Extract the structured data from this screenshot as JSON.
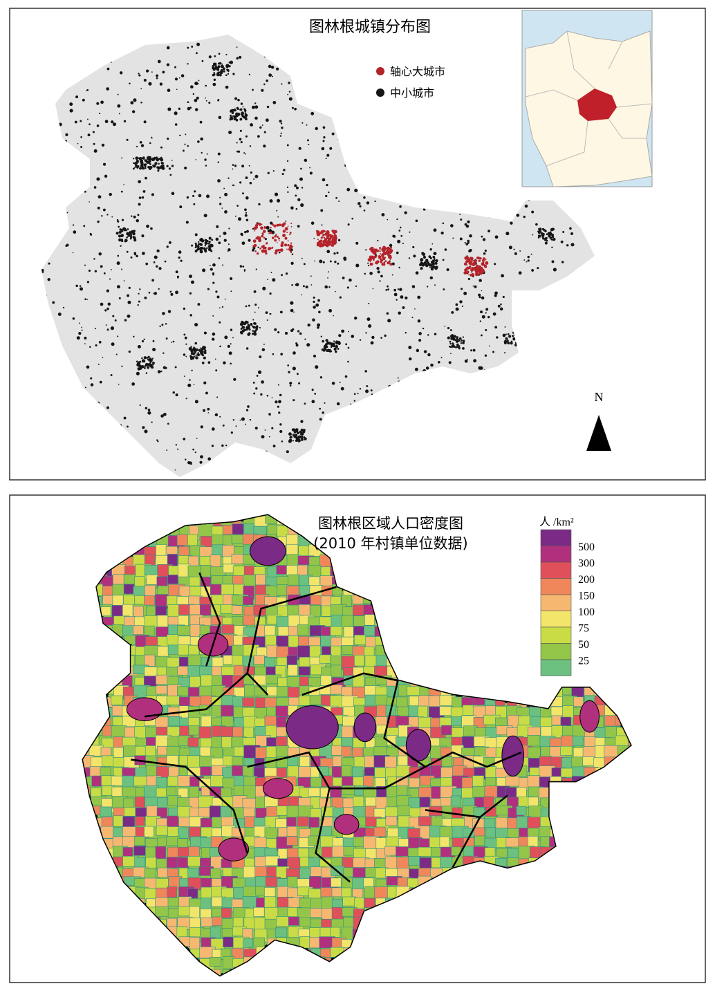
{
  "top_map": {
    "title": "图林根城镇分布图",
    "legend": [
      {
        "label": "轴心大城市",
        "color": "#b5232a"
      },
      {
        "label": "中小城市",
        "color": "#151515"
      }
    ],
    "north": "N"
  },
  "bottom_map": {
    "title": "图林根区域人口密度图",
    "subtitle": "(2010 年村镇单位数据)",
    "legend_unit": "人 /km²",
    "legend_colors": [
      "#7b2a86",
      "#b0307e",
      "#e0505a",
      "#f0875a",
      "#f6b870",
      "#f3e46a",
      "#c9dc45",
      "#93c548",
      "#6cc080"
    ],
    "legend_labels": [
      500,
      300,
      200,
      150,
      100,
      75,
      50,
      25
    ]
  }
}
